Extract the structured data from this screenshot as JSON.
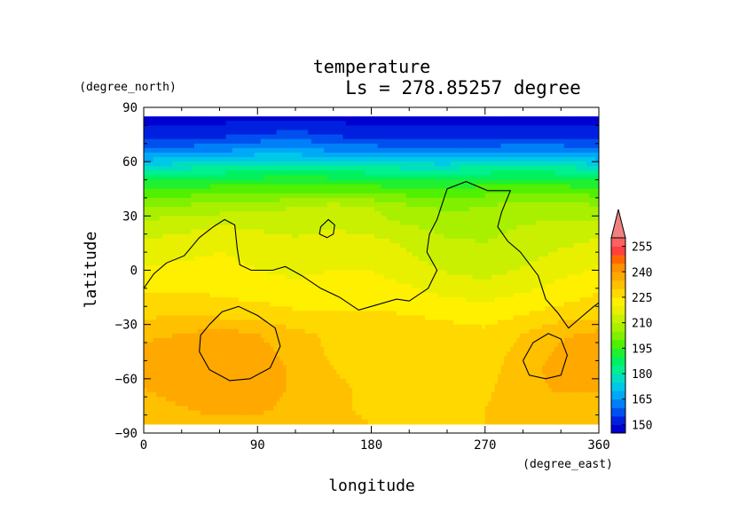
{
  "chart_data": {
    "type": "heatmap",
    "title": "temperature",
    "subtitle": "Ls = 278.85257 degree",
    "xlabel": "longitude",
    "ylabel": "latitude",
    "xunit": "(degree_east)",
    "yunit": "(degree_north)",
    "xlim": [
      0,
      360
    ],
    "ylim": [
      -90,
      90
    ],
    "xticks": [
      "0",
      "90",
      "180",
      "270",
      "360"
    ],
    "yticks": [
      "90",
      "60",
      "30",
      "0",
      "−30",
      "−60",
      "−90"
    ],
    "xtick_values": [
      0,
      90,
      180,
      270,
      360
    ],
    "ytick_values": [
      90,
      60,
      30,
      0,
      -30,
      -60,
      -90
    ],
    "colorbar": {
      "levels": [
        145,
        150,
        155,
        160,
        165,
        170,
        175,
        180,
        185,
        190,
        195,
        200,
        205,
        210,
        215,
        220,
        225,
        230,
        235,
        240,
        245,
        250,
        255,
        260
      ],
      "colors": [
        "#0000d0",
        "#0020e0",
        "#0050f0",
        "#0080f8",
        "#00a8f8",
        "#00c8e8",
        "#00e0c0",
        "#00f090",
        "#00f060",
        "#20f030",
        "#50f000",
        "#80f000",
        "#a8f000",
        "#c8f000",
        "#e8f000",
        "#fff000",
        "#ffd800",
        "#ffc000",
        "#ffa800",
        "#ff9000",
        "#ff6800",
        "#ff4040",
        "#ff6060"
      ],
      "labels": [
        "150",
        "165",
        "180",
        "195",
        "210",
        "225",
        "240",
        "255"
      ],
      "label_values": [
        150,
        165,
        180,
        195,
        210,
        225,
        240,
        255
      ],
      "over_color": "#f08080"
    },
    "longitudes": [
      0,
      30,
      60,
      90,
      120,
      150,
      180,
      210,
      240,
      270,
      300,
      330,
      360
    ],
    "latitudes": [
      85,
      75,
      65,
      55,
      45,
      35,
      25,
      15,
      5,
      -5,
      -15,
      -25,
      -35,
      -45,
      -55,
      -65,
      -75,
      -85
    ],
    "values": [
      [
        148,
        148,
        148,
        148,
        148,
        148,
        148,
        148,
        148,
        148,
        148,
        148,
        148
      ],
      [
        152,
        152,
        153,
        155,
        157,
        154,
        152,
        152,
        152,
        152,
        152,
        152,
        152
      ],
      [
        163,
        164,
        166,
        168,
        168,
        166,
        165,
        164,
        163,
        164,
        166,
        165,
        163
      ],
      [
        181,
        182,
        183,
        185,
        186,
        185,
        183,
        182,
        182,
        183,
        185,
        183,
        181
      ],
      [
        196,
        196,
        197,
        198,
        198,
        198,
        197,
        196,
        196,
        197,
        198,
        197,
        196
      ],
      [
        206,
        206,
        207,
        208,
        210,
        212,
        210,
        206,
        204,
        205,
        208,
        207,
        206
      ],
      [
        212,
        213,
        215,
        214,
        213,
        214,
        212,
        210,
        208,
        208,
        210,
        211,
        212
      ],
      [
        216,
        217,
        219,
        217,
        216,
        218,
        217,
        214,
        211,
        210,
        212,
        214,
        216
      ],
      [
        219,
        220,
        221,
        219,
        218,
        219,
        219,
        216,
        213,
        212,
        214,
        217,
        219
      ],
      [
        222,
        223,
        223,
        221,
        220,
        221,
        221,
        219,
        216,
        215,
        217,
        220,
        222
      ],
      [
        226,
        226,
        225,
        224,
        223,
        223,
        223,
        222,
        220,
        219,
        221,
        223,
        226
      ],
      [
        229,
        230,
        229,
        228,
        226,
        226,
        226,
        225,
        224,
        223,
        225,
        228,
        229
      ],
      [
        234,
        235,
        237,
        235,
        231,
        229,
        228,
        228,
        227,
        226,
        230,
        234,
        236
      ],
      [
        236,
        237,
        239,
        237,
        233,
        229,
        227,
        226,
        226,
        227,
        232,
        236,
        238
      ],
      [
        236,
        237,
        240,
        238,
        234,
        230,
        228,
        227,
        227,
        228,
        233,
        237,
        238
      ],
      [
        235,
        237,
        240,
        238,
        234,
        231,
        229,
        228,
        228,
        229,
        233,
        236,
        236
      ],
      [
        233,
        235,
        238,
        237,
        233,
        231,
        229,
        229,
        229,
        230,
        232,
        233,
        233
      ],
      [
        232,
        232,
        233,
        233,
        232,
        231,
        230,
        230,
        230,
        230,
        230,
        231,
        232
      ]
    ],
    "contours": [
      [
        [
          0,
          -10
        ],
        [
          8,
          -2
        ],
        [
          18,
          4
        ],
        [
          32,
          8
        ],
        [
          44,
          18
        ],
        [
          55,
          24
        ],
        [
          64,
          28
        ],
        [
          72,
          25
        ],
        [
          74,
          12
        ],
        [
          76,
          3
        ],
        [
          85,
          0
        ],
        [
          102,
          0
        ],
        [
          112,
          2
        ],
        [
          125,
          -3
        ],
        [
          140,
          -10
        ],
        [
          155,
          -15
        ],
        [
          170,
          -22
        ],
        [
          180,
          -20
        ],
        [
          190,
          -18
        ],
        [
          200,
          -16
        ],
        [
          210,
          -17
        ],
        [
          225,
          -10
        ],
        [
          232,
          0
        ],
        [
          224,
          10
        ],
        [
          226,
          20
        ],
        [
          232,
          28
        ],
        [
          240,
          45
        ],
        [
          255,
          49
        ],
        [
          272,
          44
        ],
        [
          290,
          44
        ],
        [
          283,
          32
        ],
        [
          280,
          24
        ],
        [
          288,
          16
        ],
        [
          298,
          10
        ],
        [
          312,
          -3
        ],
        [
          318,
          -16
        ],
        [
          328,
          -24
        ],
        [
          336,
          -32
        ],
        [
          346,
          -26
        ],
        [
          356,
          -20
        ],
        [
          360,
          -18
        ]
      ],
      [
        [
          140,
          24
        ],
        [
          146,
          28
        ],
        [
          151,
          25
        ],
        [
          150,
          20
        ],
        [
          145,
          18
        ],
        [
          139,
          20
        ],
        [
          140,
          24
        ]
      ],
      [
        [
          52,
          -30
        ],
        [
          62,
          -23
        ],
        [
          75,
          -20
        ],
        [
          90,
          -25
        ],
        [
          104,
          -32
        ],
        [
          108,
          -42
        ],
        [
          100,
          -54
        ],
        [
          84,
          -60
        ],
        [
          68,
          -61
        ],
        [
          52,
          -55
        ],
        [
          44,
          -45
        ],
        [
          45,
          -36
        ],
        [
          52,
          -30
        ]
      ],
      [
        [
          300,
          -50
        ],
        [
          308,
          -40
        ],
        [
          320,
          -35
        ],
        [
          330,
          -38
        ],
        [
          335,
          -47
        ],
        [
          330,
          -58
        ],
        [
          318,
          -60
        ],
        [
          305,
          -58
        ],
        [
          300,
          -50
        ]
      ]
    ]
  }
}
